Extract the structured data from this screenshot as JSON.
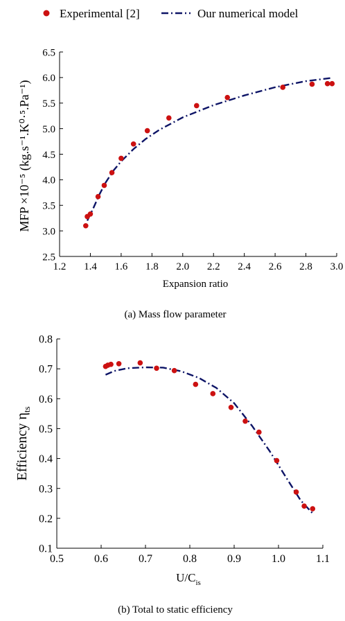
{
  "legend": {
    "experimental_label": "Experimental [2]",
    "model_label": "Our numerical model",
    "placement": "top-center"
  },
  "colors": {
    "experimental": "#cc1111",
    "model": "#0d1466",
    "axis": "#000000"
  },
  "chart_data": [
    {
      "type": "scatter",
      "caption": "(a) Mass flow parameter",
      "xlabel": "Expansion ratio",
      "ylabel": "MFP ×10⁻⁵ (kg.s⁻¹.K⁰·⁵.Pa⁻¹)",
      "xlim": [
        1.2,
        3.0
      ],
      "ylim": [
        2.5,
        6.5
      ],
      "xticks": [
        "1.2",
        "1.4",
        "1.6",
        "1.8",
        "2.0",
        "2.2",
        "2.4",
        "2.6",
        "2.8",
        "3.0"
      ],
      "yticks": [
        "2.5",
        "3.0",
        "3.5",
        "4.0",
        "4.5",
        "5.0",
        "5.5",
        "6.0",
        "6.5"
      ],
      "grid": false,
      "series": [
        {
          "name": "Experimental [2]",
          "type": "scatter",
          "x": [
            1.37,
            1.38,
            1.4,
            1.45,
            1.49,
            1.54,
            1.6,
            1.68,
            1.77,
            1.91,
            2.09,
            2.29,
            2.65,
            2.84,
            2.94,
            2.97
          ],
          "y": [
            3.1,
            3.28,
            3.33,
            3.67,
            3.89,
            4.14,
            4.42,
            4.7,
            4.96,
            5.21,
            5.45,
            5.61,
            5.81,
            5.87,
            5.88,
            5.88
          ]
        },
        {
          "name": "Our numerical model",
          "type": "line",
          "x": [
            1.38,
            1.42,
            1.46,
            1.5,
            1.55,
            1.6,
            1.68,
            1.76,
            1.85,
            2.0,
            2.2,
            2.4,
            2.6,
            2.8,
            2.96
          ],
          "y": [
            3.2,
            3.45,
            3.72,
            3.95,
            4.18,
            4.36,
            4.6,
            4.8,
            4.98,
            5.22,
            5.46,
            5.65,
            5.81,
            5.93,
            5.99
          ]
        }
      ]
    },
    {
      "type": "scatter",
      "caption": "(b) Total to static efficiency",
      "xlabel": "U/C",
      "xlabel_sub": "is",
      "ylabel": "Efficiency η",
      "ylabel_sub": "ts",
      "xlim": [
        0.5,
        1.1
      ],
      "ylim": [
        0.1,
        0.8
      ],
      "xticks": [
        "0.5",
        "0.6",
        "0.7",
        "0.8",
        "0.9",
        "1.0",
        "1.1"
      ],
      "yticks": [
        "0.1",
        "0.2",
        "0.3",
        "0.4",
        "0.5",
        "0.6",
        "0.7",
        "0.8"
      ],
      "grid": false,
      "series": [
        {
          "name": "Experimental [2]",
          "type": "scatter",
          "x": [
            0.61,
            0.615,
            0.622,
            0.64,
            0.688,
            0.725,
            0.765,
            0.813,
            0.852,
            0.893,
            0.925,
            0.956,
            0.996,
            1.04,
            1.058,
            1.077
          ],
          "y": [
            0.708,
            0.712,
            0.715,
            0.717,
            0.72,
            0.702,
            0.694,
            0.648,
            0.617,
            0.571,
            0.525,
            0.488,
            0.393,
            0.288,
            0.241,
            0.232
          ]
        },
        {
          "name": "Our numerical model",
          "type": "line",
          "x": [
            0.61,
            0.63,
            0.66,
            0.7,
            0.74,
            0.78,
            0.82,
            0.86,
            0.9,
            0.94,
            0.98,
            1.02,
            1.05,
            1.078
          ],
          "y": [
            0.68,
            0.693,
            0.702,
            0.705,
            0.704,
            0.692,
            0.67,
            0.636,
            0.585,
            0.51,
            0.425,
            0.33,
            0.26,
            0.215
          ]
        }
      ]
    }
  ]
}
